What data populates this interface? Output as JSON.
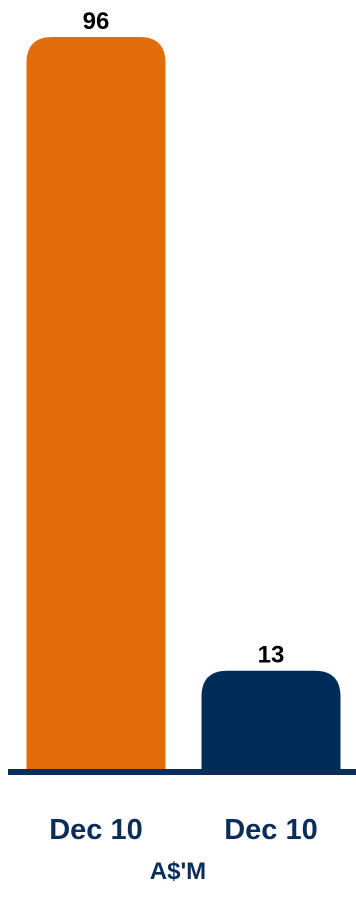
{
  "chart_data": {
    "type": "bar",
    "categories": [
      "Dec 10",
      "Dec 10"
    ],
    "values": [
      96,
      13
    ],
    "value_labels": [
      "96",
      "13"
    ],
    "bar_colors": [
      "#e36c0a",
      "#002c5a"
    ],
    "ylim": [
      0,
      96
    ],
    "xlabel": "A$'M",
    "ylabel": "",
    "title": "",
    "grid": false,
    "axis_color": "#0a2d5a"
  }
}
